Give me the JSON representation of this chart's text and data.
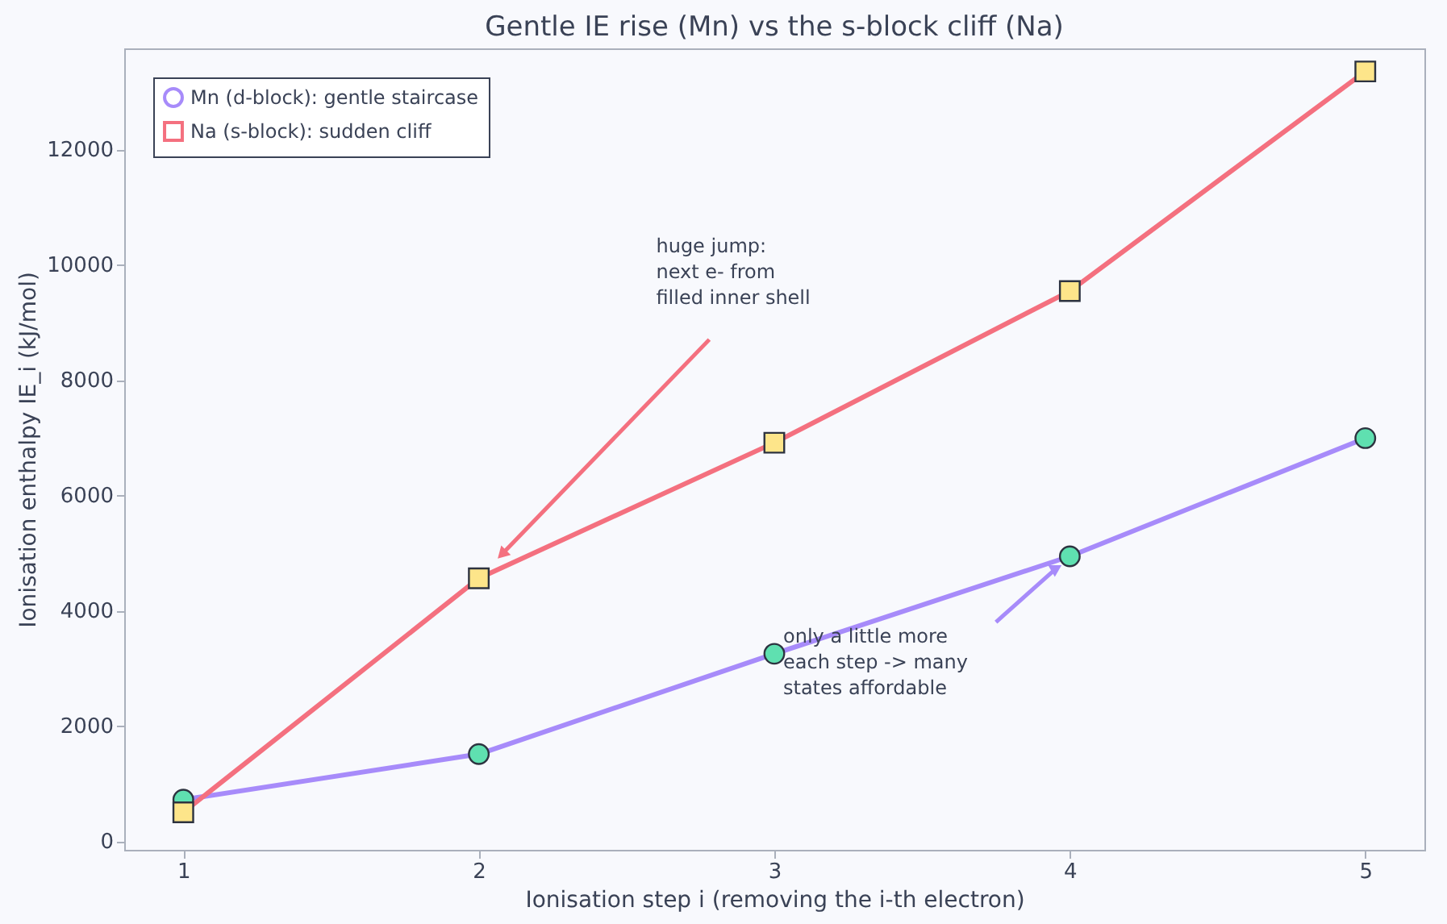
{
  "chart_data": {
    "type": "line",
    "title": "Gentle IE rise (Mn) vs the s-block cliff (Na)",
    "xlabel": "Ionisation step  i  (removing the i-th electron)",
    "ylabel": "Ionisation enthalpy IE_i  (kJ/mol)",
    "x": [
      1,
      2,
      3,
      4,
      5
    ],
    "series": [
      {
        "name": "Mn (d-block): gentle staircase",
        "color": "#a78bfa",
        "marker": "circle",
        "values": [
          720,
          1510,
          3250,
          4940,
          6990
        ]
      },
      {
        "name": "Na (s-block): sudden cliff",
        "color": "#f4707f",
        "marker": "square",
        "values": [
          500,
          4560,
          6910,
          9540,
          13350
        ]
      }
    ],
    "xlim": [
      0.8,
      5.2
    ],
    "xticks": [
      1,
      2,
      3,
      4,
      5
    ],
    "ylim": [
      -150,
      13750
    ],
    "yticks": [
      0,
      2000,
      4000,
      6000,
      8000,
      10000,
      12000
    ],
    "annotations": [
      "huge jump:\nnext e- from\nfilled inner shell",
      "only a little more\neach step -> many\nstates affordable"
    ],
    "grid": false,
    "legend": "top left",
    "line_style": "solid"
  }
}
